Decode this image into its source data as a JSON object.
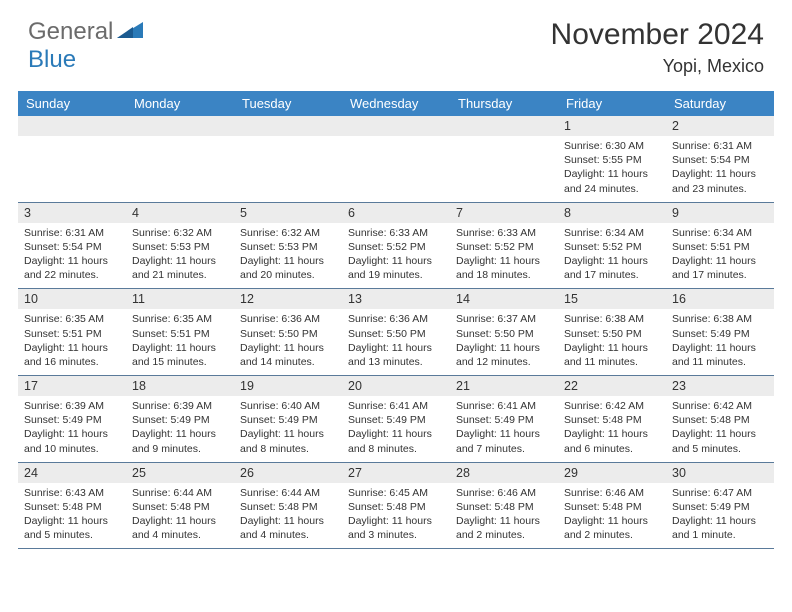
{
  "brand": {
    "part1": "General",
    "part2": "Blue"
  },
  "title": "November 2024",
  "location": "Yopi, Mexico",
  "colors": {
    "header_bg": "#3b84c4",
    "header_text": "#ffffff",
    "daynum_bg": "#ececec",
    "row_divider": "#5a7a9a",
    "brand_gray": "#6b6b6b",
    "brand_blue": "#2a7ab8",
    "body_text": "#333333",
    "page_bg": "#ffffff"
  },
  "weekdays": [
    "Sunday",
    "Monday",
    "Tuesday",
    "Wednesday",
    "Thursday",
    "Friday",
    "Saturday"
  ],
  "weeks": [
    {
      "nums": [
        "",
        "",
        "",
        "",
        "",
        "1",
        "2"
      ],
      "cells": [
        null,
        null,
        null,
        null,
        null,
        {
          "sunrise": "Sunrise: 6:30 AM",
          "sunset": "Sunset: 5:55 PM",
          "day1": "Daylight: 11 hours",
          "day2": "and 24 minutes."
        },
        {
          "sunrise": "Sunrise: 6:31 AM",
          "sunset": "Sunset: 5:54 PM",
          "day1": "Daylight: 11 hours",
          "day2": "and 23 minutes."
        }
      ]
    },
    {
      "nums": [
        "3",
        "4",
        "5",
        "6",
        "7",
        "8",
        "9"
      ],
      "cells": [
        {
          "sunrise": "Sunrise: 6:31 AM",
          "sunset": "Sunset: 5:54 PM",
          "day1": "Daylight: 11 hours",
          "day2": "and 22 minutes."
        },
        {
          "sunrise": "Sunrise: 6:32 AM",
          "sunset": "Sunset: 5:53 PM",
          "day1": "Daylight: 11 hours",
          "day2": "and 21 minutes."
        },
        {
          "sunrise": "Sunrise: 6:32 AM",
          "sunset": "Sunset: 5:53 PM",
          "day1": "Daylight: 11 hours",
          "day2": "and 20 minutes."
        },
        {
          "sunrise": "Sunrise: 6:33 AM",
          "sunset": "Sunset: 5:52 PM",
          "day1": "Daylight: 11 hours",
          "day2": "and 19 minutes."
        },
        {
          "sunrise": "Sunrise: 6:33 AM",
          "sunset": "Sunset: 5:52 PM",
          "day1": "Daylight: 11 hours",
          "day2": "and 18 minutes."
        },
        {
          "sunrise": "Sunrise: 6:34 AM",
          "sunset": "Sunset: 5:52 PM",
          "day1": "Daylight: 11 hours",
          "day2": "and 17 minutes."
        },
        {
          "sunrise": "Sunrise: 6:34 AM",
          "sunset": "Sunset: 5:51 PM",
          "day1": "Daylight: 11 hours",
          "day2": "and 17 minutes."
        }
      ]
    },
    {
      "nums": [
        "10",
        "11",
        "12",
        "13",
        "14",
        "15",
        "16"
      ],
      "cells": [
        {
          "sunrise": "Sunrise: 6:35 AM",
          "sunset": "Sunset: 5:51 PM",
          "day1": "Daylight: 11 hours",
          "day2": "and 16 minutes."
        },
        {
          "sunrise": "Sunrise: 6:35 AM",
          "sunset": "Sunset: 5:51 PM",
          "day1": "Daylight: 11 hours",
          "day2": "and 15 minutes."
        },
        {
          "sunrise": "Sunrise: 6:36 AM",
          "sunset": "Sunset: 5:50 PM",
          "day1": "Daylight: 11 hours",
          "day2": "and 14 minutes."
        },
        {
          "sunrise": "Sunrise: 6:36 AM",
          "sunset": "Sunset: 5:50 PM",
          "day1": "Daylight: 11 hours",
          "day2": "and 13 minutes."
        },
        {
          "sunrise": "Sunrise: 6:37 AM",
          "sunset": "Sunset: 5:50 PM",
          "day1": "Daylight: 11 hours",
          "day2": "and 12 minutes."
        },
        {
          "sunrise": "Sunrise: 6:38 AM",
          "sunset": "Sunset: 5:50 PM",
          "day1": "Daylight: 11 hours",
          "day2": "and 11 minutes."
        },
        {
          "sunrise": "Sunrise: 6:38 AM",
          "sunset": "Sunset: 5:49 PM",
          "day1": "Daylight: 11 hours",
          "day2": "and 11 minutes."
        }
      ]
    },
    {
      "nums": [
        "17",
        "18",
        "19",
        "20",
        "21",
        "22",
        "23"
      ],
      "cells": [
        {
          "sunrise": "Sunrise: 6:39 AM",
          "sunset": "Sunset: 5:49 PM",
          "day1": "Daylight: 11 hours",
          "day2": "and 10 minutes."
        },
        {
          "sunrise": "Sunrise: 6:39 AM",
          "sunset": "Sunset: 5:49 PM",
          "day1": "Daylight: 11 hours",
          "day2": "and 9 minutes."
        },
        {
          "sunrise": "Sunrise: 6:40 AM",
          "sunset": "Sunset: 5:49 PM",
          "day1": "Daylight: 11 hours",
          "day2": "and 8 minutes."
        },
        {
          "sunrise": "Sunrise: 6:41 AM",
          "sunset": "Sunset: 5:49 PM",
          "day1": "Daylight: 11 hours",
          "day2": "and 8 minutes."
        },
        {
          "sunrise": "Sunrise: 6:41 AM",
          "sunset": "Sunset: 5:49 PM",
          "day1": "Daylight: 11 hours",
          "day2": "and 7 minutes."
        },
        {
          "sunrise": "Sunrise: 6:42 AM",
          "sunset": "Sunset: 5:48 PM",
          "day1": "Daylight: 11 hours",
          "day2": "and 6 minutes."
        },
        {
          "sunrise": "Sunrise: 6:42 AM",
          "sunset": "Sunset: 5:48 PM",
          "day1": "Daylight: 11 hours",
          "day2": "and 5 minutes."
        }
      ]
    },
    {
      "nums": [
        "24",
        "25",
        "26",
        "27",
        "28",
        "29",
        "30"
      ],
      "cells": [
        {
          "sunrise": "Sunrise: 6:43 AM",
          "sunset": "Sunset: 5:48 PM",
          "day1": "Daylight: 11 hours",
          "day2": "and 5 minutes."
        },
        {
          "sunrise": "Sunrise: 6:44 AM",
          "sunset": "Sunset: 5:48 PM",
          "day1": "Daylight: 11 hours",
          "day2": "and 4 minutes."
        },
        {
          "sunrise": "Sunrise: 6:44 AM",
          "sunset": "Sunset: 5:48 PM",
          "day1": "Daylight: 11 hours",
          "day2": "and 4 minutes."
        },
        {
          "sunrise": "Sunrise: 6:45 AM",
          "sunset": "Sunset: 5:48 PM",
          "day1": "Daylight: 11 hours",
          "day2": "and 3 minutes."
        },
        {
          "sunrise": "Sunrise: 6:46 AM",
          "sunset": "Sunset: 5:48 PM",
          "day1": "Daylight: 11 hours",
          "day2": "and 2 minutes."
        },
        {
          "sunrise": "Sunrise: 6:46 AM",
          "sunset": "Sunset: 5:48 PM",
          "day1": "Daylight: 11 hours",
          "day2": "and 2 minutes."
        },
        {
          "sunrise": "Sunrise: 6:47 AM",
          "sunset": "Sunset: 5:49 PM",
          "day1": "Daylight: 11 hours",
          "day2": "and 1 minute."
        }
      ]
    }
  ]
}
